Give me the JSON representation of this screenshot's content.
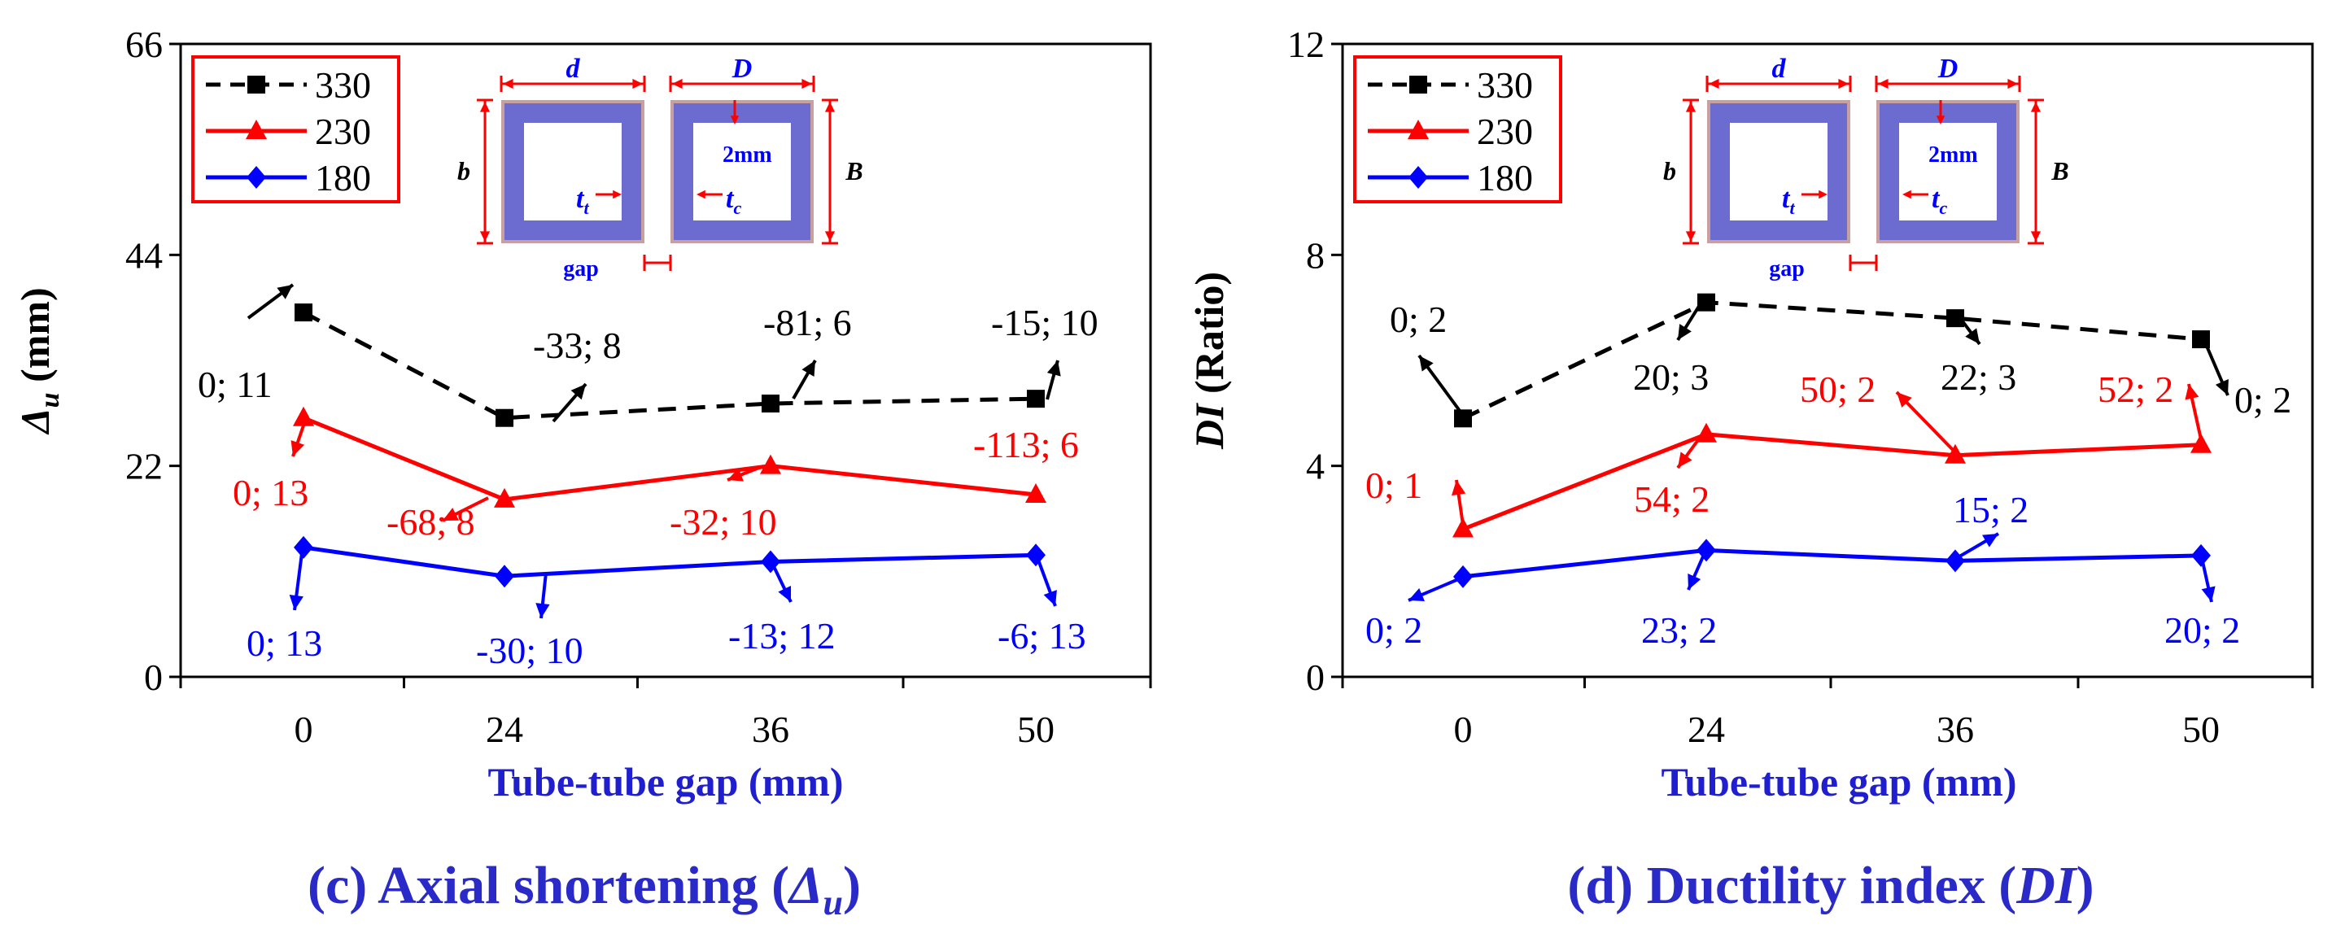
{
  "chart_data": [
    {
      "type": "line",
      "title": "(c) Axial shortening (Δu)",
      "title_parts": {
        "prefix": "(c) Axial shortening (",
        "symbol": "Δ",
        "sub": "u",
        "suffix": ")"
      },
      "xlabel": "Tube-tube gap (mm)",
      "ylabel": {
        "symbol": "Δ",
        "sub": "u",
        "unit": " (mm)"
      },
      "categories": [
        "0",
        "24",
        "36",
        "50"
      ],
      "ylim": [
        0,
        66
      ],
      "yticks": [
        "0",
        "22",
        "44",
        "66"
      ],
      "yticks_values": [
        0,
        22,
        44,
        66
      ],
      "legend": {
        "placement": "top-left"
      },
      "series": [
        {
          "name": "330",
          "color": "#000000",
          "dash": true,
          "marker": "square",
          "values": [
            38,
            27,
            28.5,
            29
          ]
        },
        {
          "name": "230",
          "color": "#ff0000",
          "dash": false,
          "marker": "triangle",
          "values": [
            27,
            18.5,
            22,
            19
          ]
        },
        {
          "name": "180",
          "color": "#0000ff",
          "dash": false,
          "marker": "diamond",
          "values": [
            13.5,
            10.5,
            12,
            12.7
          ]
        }
      ],
      "annotations": [
        {
          "text": "0; 11",
          "color": "#000000"
        },
        {
          "text": "-33; 8",
          "color": "#000000"
        },
        {
          "text": "-81; 6",
          "color": "#000000"
        },
        {
          "text": "-15; 10",
          "color": "#000000"
        },
        {
          "text": "0; 13",
          "color": "#ff0000"
        },
        {
          "text": "-68; 8",
          "color": "#ff0000"
        },
        {
          "text": "-32; 10",
          "color": "#ff0000"
        },
        {
          "text": "-113; 6",
          "color": "#ff0000"
        },
        {
          "text": "0; 13",
          "color": "#0000ff"
        },
        {
          "text": "-30; 10",
          "color": "#0000ff"
        },
        {
          "text": "-13; 12",
          "color": "#0000ff"
        },
        {
          "text": "-6; 13",
          "color": "#0000ff"
        }
      ]
    },
    {
      "type": "line",
      "title": "(d) Ductility index (DI)",
      "title_parts": {
        "prefix": "(d) Ductility index (",
        "symbol": "DI",
        "sub": "",
        "suffix": ")"
      },
      "xlabel": "Tube-tube gap (mm)",
      "ylabel": {
        "symbol": "DI",
        "sub": "",
        "unit": " (Ratio)"
      },
      "categories": [
        "0",
        "24",
        "36",
        "50"
      ],
      "ylim": [
        0,
        12
      ],
      "yticks": [
        "0",
        "4",
        "8",
        "12"
      ],
      "yticks_values": [
        0,
        4,
        8,
        12
      ],
      "legend": {
        "placement": "top-left"
      },
      "series": [
        {
          "name": "330",
          "color": "#000000",
          "dash": true,
          "marker": "square",
          "values": [
            4.9,
            7.1,
            6.8,
            6.4
          ]
        },
        {
          "name": "230",
          "color": "#ff0000",
          "dash": false,
          "marker": "triangle",
          "values": [
            2.8,
            4.6,
            4.2,
            4.4
          ]
        },
        {
          "name": "180",
          "color": "#0000ff",
          "dash": false,
          "marker": "diamond",
          "values": [
            1.9,
            2.4,
            2.2,
            2.3
          ]
        }
      ],
      "annotations": [
        {
          "text": "0; 2",
          "color": "#000000"
        },
        {
          "text": "20; 3",
          "color": "#000000"
        },
        {
          "text": "22; 3",
          "color": "#000000"
        },
        {
          "text": "0; 2",
          "color": "#000000"
        },
        {
          "text": "0; 1",
          "color": "#ff0000"
        },
        {
          "text": "54; 2",
          "color": "#ff0000"
        },
        {
          "text": "50; 2",
          "color": "#ff0000"
        },
        {
          "text": "52; 2",
          "color": "#ff0000"
        },
        {
          "text": "0; 2",
          "color": "#0000ff"
        },
        {
          "text": "23; 2",
          "color": "#0000ff"
        },
        {
          "text": "15; 2",
          "color": "#0000ff"
        },
        {
          "text": "20; 2",
          "color": "#0000ff"
        }
      ]
    }
  ],
  "inset": {
    "labels": {
      "d": "d",
      "D": "D",
      "b": "b",
      "B": "B",
      "t": "t",
      "t_sub_t": "t",
      "t_sub_c": "c",
      "thickness": "2mm",
      "gap": "gap"
    },
    "colors": {
      "tube": "#6b6bd0",
      "outline": "#c8a0a0",
      "dim": "#ff0000",
      "text_blue": "#0000ff"
    }
  }
}
